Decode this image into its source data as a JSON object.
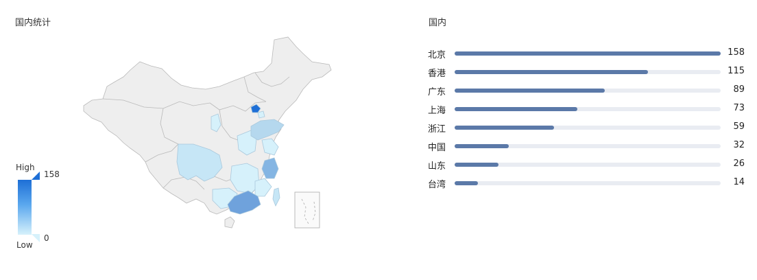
{
  "map_panel": {
    "title": "国内统计"
  },
  "visual_map": {
    "high_label": "High",
    "low_label": "Low",
    "max": "158",
    "min": "0"
  },
  "bar_panel": {
    "title": "国内"
  },
  "chart_data": [
    {
      "type": "map",
      "region": "China",
      "visual_map": {
        "min": 0,
        "max": 158,
        "high_color": "#1e6fd6",
        "low_color": "#d6f1fb"
      },
      "highlighted_regions": [
        {
          "name": "北京",
          "value": 158
        },
        {
          "name": "广东",
          "value": 89
        },
        {
          "name": "浙江",
          "value": 59
        },
        {
          "name": "上海",
          "value": 73
        },
        {
          "name": "山东",
          "value": 26
        },
        {
          "name": "台湾",
          "value": 14
        }
      ]
    },
    {
      "type": "bar",
      "orientation": "horizontal",
      "categories": [
        "北京",
        "香港",
        "广东",
        "上海",
        "浙江",
        "中国",
        "山东",
        "台湾"
      ],
      "values": [
        158,
        115,
        89,
        73,
        59,
        32,
        26,
        14
      ],
      "max": 158,
      "bar_color": "#5b79a8",
      "track_color": "#e9ecf2"
    }
  ]
}
